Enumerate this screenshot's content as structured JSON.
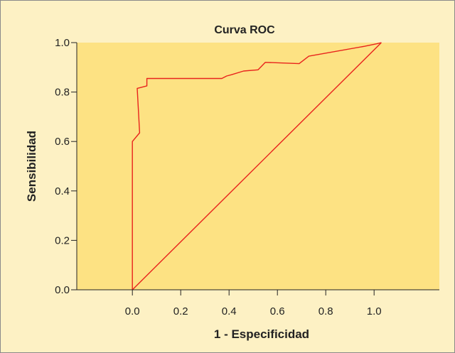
{
  "chart_data": {
    "type": "line",
    "title": "Curva ROC",
    "xlabel": "1 - Especificidad",
    "ylabel": "Sensibilidad",
    "xlim": [
      -0.23,
      1.27
    ],
    "ylim": [
      0.0,
      1.0
    ],
    "x_ticks": [
      "0.0",
      "0.2",
      "0.4",
      "0.6",
      "0.8",
      "1.0"
    ],
    "y_ticks": [
      "0.0",
      "0.2",
      "0.4",
      "0.6",
      "0.8",
      "1.0"
    ],
    "grid": false,
    "series": [
      {
        "kind": "roc-curve",
        "x": [
          0.0,
          0.0,
          0.0,
          0.03,
          0.02,
          0.06,
          0.06,
          0.37,
          0.39,
          0.41,
          0.46,
          0.52,
          0.55,
          0.69,
          0.73,
          0.96,
          1.01,
          1.03
        ],
        "y": [
          0.0,
          0.4,
          0.6,
          0.635,
          0.815,
          0.825,
          0.855,
          0.855,
          0.865,
          0.87,
          0.885,
          0.89,
          0.92,
          0.915,
          0.945,
          0.985,
          0.995,
          1.0
        ]
      },
      {
        "kind": "reference-diagonal",
        "x": [
          0.0,
          1.03
        ],
        "y": [
          0.0,
          1.0
        ]
      }
    ],
    "colors": {
      "plot_background": "#fde283",
      "page_background": "#fdf1c4",
      "line": "#e8231c",
      "axis": "#222222"
    }
  }
}
